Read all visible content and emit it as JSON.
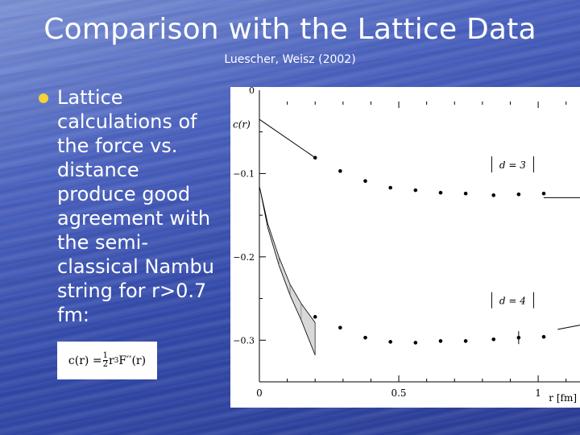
{
  "slide": {
    "title": "Comparison with the Lattice Data",
    "subtitle": "Luescher, Weisz (2002)",
    "bullet": "Lattice calculations of the force vs. distance produce good agreement with the semi-classical Nambu string for r>0.7 fm:",
    "formula": {
      "lhs": "c(r) = ",
      "frac_num": "1",
      "frac_den": "2",
      "r": "r",
      "exp": "3",
      "rhs": "F′′(r)"
    },
    "colors": {
      "background": "#3a52b3",
      "bullet": "#f3d23a",
      "text": "#ffffff"
    }
  },
  "chart_data": {
    "type": "scatter",
    "ylabel": "c(r)",
    "xlabel": "r [fm]",
    "xlim": [
      0,
      1.15
    ],
    "ylim": [
      -0.35,
      0
    ],
    "x_ticks": [
      0,
      0.5,
      1
    ],
    "x_tick_labels": [
      "0",
      "0.5",
      "1"
    ],
    "y_ticks": [
      0,
      -0.1,
      -0.2,
      -0.3
    ],
    "y_tick_labels": [
      "0",
      "−0.1",
      "−0.2",
      "−0.3"
    ],
    "series": [
      {
        "name": "d = 3",
        "x": [
          0.2,
          0.29,
          0.38,
          0.47,
          0.56,
          0.65,
          0.74,
          0.84,
          0.93,
          1.02
        ],
        "y": [
          -0.081,
          -0.097,
          -0.109,
          -0.117,
          -0.12,
          -0.123,
          -0.124,
          -0.126,
          -0.125,
          -0.124
        ],
        "curve_x": [
          0,
          0.2
        ],
        "curve_y": [
          -0.035,
          -0.081
        ],
        "tail_x": [
          1.02,
          1.15
        ],
        "tail_y": [
          -0.129,
          -0.129
        ]
      },
      {
        "name": "d = 4",
        "x": [
          0.2,
          0.29,
          0.38,
          0.47,
          0.56,
          0.65,
          0.74,
          0.84,
          0.93,
          1.02
        ],
        "y": [
          -0.272,
          -0.285,
          -0.297,
          -0.302,
          -0.303,
          -0.301,
          -0.301,
          -0.299,
          -0.297,
          -0.296
        ],
        "band_upper_x": [
          0,
          0.03,
          0.07,
          0.11,
          0.15,
          0.2
        ],
        "band_upper_y": [
          -0.115,
          -0.16,
          -0.2,
          -0.233,
          -0.256,
          -0.279
        ],
        "band_lower_x": [
          0,
          0.03,
          0.07,
          0.11,
          0.15,
          0.2
        ],
        "band_lower_y": [
          -0.115,
          -0.165,
          -0.21,
          -0.246,
          -0.276,
          -0.318
        ],
        "tail_x": [
          1.07,
          1.15
        ],
        "tail_y": [
          -0.287,
          -0.282
        ]
      }
    ],
    "annotations": [
      "d = 3",
      "d = 4"
    ],
    "grid": false,
    "legend": "none"
  }
}
